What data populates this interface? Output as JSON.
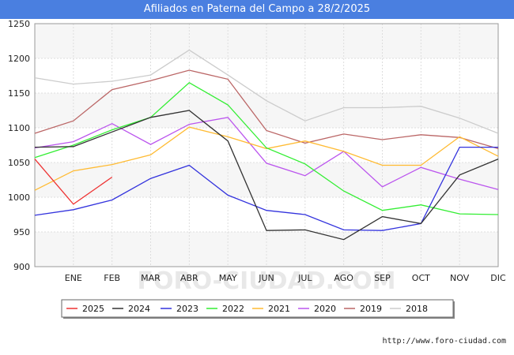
{
  "title": "Afiliados en Paterna del Campo a 28/2/2025",
  "footer": "http://www.foro-ciudad.com",
  "watermark": "FORO-CIUDAD.COM",
  "chart_data": {
    "type": "line",
    "categories": [
      "",
      "ENE",
      "FEB",
      "MAR",
      "ABR",
      "MAY",
      "JUN",
      "JUL",
      "AGO",
      "SEP",
      "OCT",
      "NOV",
      "DIC"
    ],
    "ylim": [
      900,
      1250
    ],
    "yticks": [
      900,
      950,
      1000,
      1050,
      1100,
      1150,
      1200,
      1250
    ],
    "grid": true,
    "legend_position": "bottom",
    "series": [
      {
        "name": "2025",
        "color": "#ee3333",
        "values": [
          1055,
          990,
          1029,
          null,
          null,
          null,
          null,
          null,
          null,
          null,
          null,
          null,
          null
        ]
      },
      {
        "name": "2024",
        "color": "#333333",
        "values": [
          1072,
          1073,
          1094,
          1115,
          1125,
          1081,
          952,
          953,
          939,
          972,
          962,
          1032,
          1055
        ]
      },
      {
        "name": "2023",
        "color": "#3333dd",
        "values": [
          974,
          982,
          996,
          1027,
          1046,
          1003,
          981,
          975,
          953,
          952,
          962,
          1072,
          1072
        ]
      },
      {
        "name": "2022",
        "color": "#33ee33",
        "values": [
          1057,
          1075,
          1097,
          1115,
          1165,
          1133,
          1071,
          1048,
          1009,
          981,
          989,
          976,
          975
        ]
      },
      {
        "name": "2021",
        "color": "#ffbb33",
        "values": [
          1010,
          1038,
          1047,
          1061,
          1101,
          1087,
          1070,
          1081,
          1066,
          1046,
          1046,
          1087,
          1059
        ]
      },
      {
        "name": "2020",
        "color": "#bb55ee",
        "values": [
          1071,
          1080,
          1106,
          1076,
          1105,
          1115,
          1049,
          1031,
          1066,
          1015,
          1043,
          1026,
          1011
        ]
      },
      {
        "name": "2019",
        "color": "#bb6666",
        "values": [
          1092,
          1110,
          1155,
          1168,
          1183,
          1170,
          1096,
          1078,
          1091,
          1083,
          1090,
          1086,
          1070
        ]
      },
      {
        "name": "2018",
        "color": "#cccccc",
        "values": [
          1172,
          1163,
          1167,
          1176,
          1212,
          1176,
          1139,
          1110,
          1129,
          1129,
          1131,
          1114,
          1092
        ]
      }
    ]
  }
}
